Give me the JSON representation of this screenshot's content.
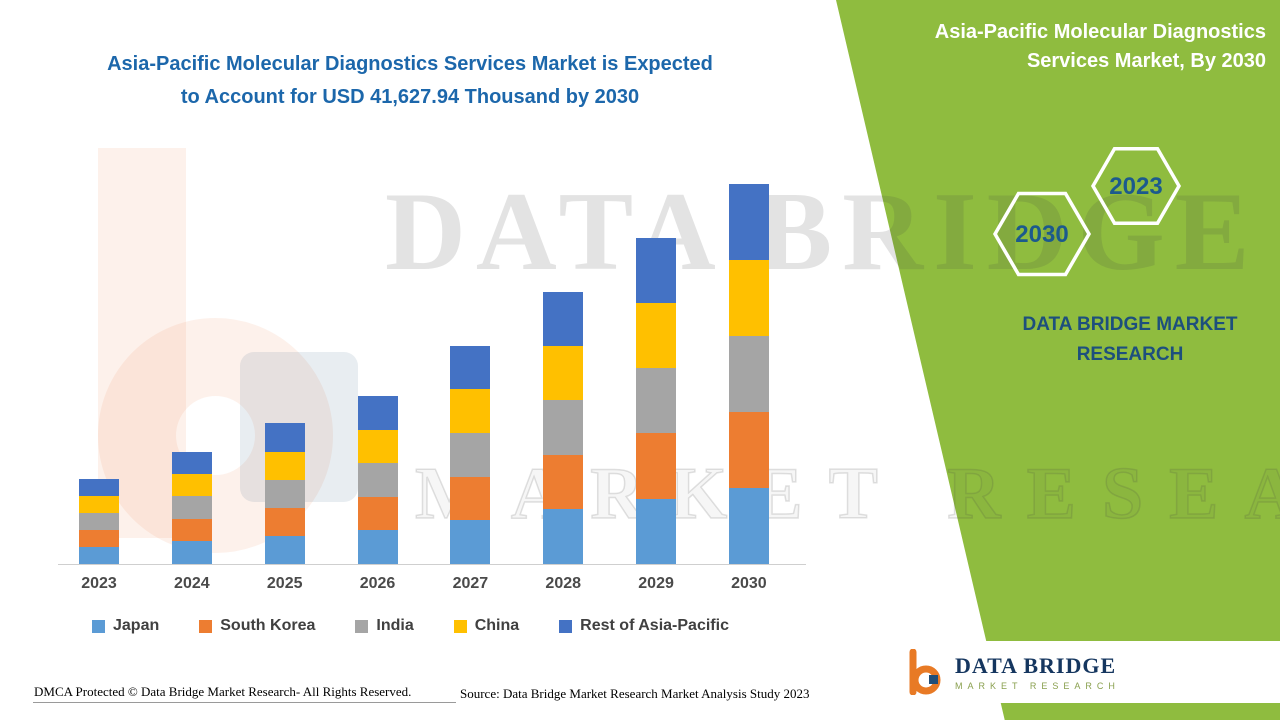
{
  "header": {
    "left_title_line1": "Asia-Pacific Molecular Diagnostics Services Market is Expected",
    "left_title_line2": "to Account for USD 41,627.94 Thousand by 2030",
    "right_title_line1": "Asia-Pacific Molecular Diagnostics",
    "right_title_line2": "Services Market, By 2030"
  },
  "badges": {
    "hex_left": "2030",
    "hex_right": "2023"
  },
  "branding": {
    "name_line1": "DATA BRIDGE MARKET",
    "name_line2": "RESEARCH",
    "logo_title": "DATA BRIDGE",
    "logo_subtitle": "MARKET RESEARCH"
  },
  "watermark": {
    "line1": "DATA BRIDGE",
    "line2": "MARKET RESEARCH"
  },
  "footer": {
    "dmca": "DMCA Protected © Data Bridge Market Research- All Rights Reserved.",
    "source": "Source: Data Bridge Market Research Market Analysis Study 2023"
  },
  "colors": {
    "green_panel": "#8fbc3f",
    "title_blue": "#1c67ab",
    "brand_navy": "#1d4f7d",
    "hex_number_blue": "#1c5a8d",
    "logo_orange": "#e87a25",
    "japan": "#5B9BD5",
    "south_korea": "#ED7D31",
    "india": "#A5A5A5",
    "china": "#FFC000",
    "rest_of_asia_pacific": "#4472C4"
  },
  "chart_data": {
    "type": "bar",
    "stacked": true,
    "title": "Asia-Pacific Molecular Diagnostics Services Market is Expected to Account for USD 41,627.94 Thousand by 2030",
    "unit": "USD Thousand",
    "labeled_value": {
      "year": "2030",
      "total": 41627.94,
      "label": "USD 41,627.94 Thousand"
    },
    "categories": [
      "2023",
      "2024",
      "2025",
      "2026",
      "2027",
      "2028",
      "2029",
      "2030"
    ],
    "series": [
      {
        "name": "Japan",
        "color": "#5B9BD5",
        "values": [
          1900,
          2500,
          3100,
          3700,
          4800,
          6000,
          7150,
          8330
        ]
      },
      {
        "name": "South Korea",
        "color": "#ED7D31",
        "values": [
          1880,
          2470,
          3090,
          3680,
          4790,
          5970,
          7150,
          8330
        ]
      },
      {
        "name": "India",
        "color": "#A5A5A5",
        "values": [
          1850,
          2440,
          3070,
          3660,
          4780,
          5960,
          7140,
          8320
        ]
      },
      {
        "name": "China",
        "color": "#FFC000",
        "values": [
          1860,
          2440,
          3070,
          3660,
          4790,
          5960,
          7150,
          8320
        ]
      },
      {
        "name": "Rest of Asia-Pacific",
        "color": "#4472C4",
        "values": [
          1810,
          2390,
          3080,
          3660,
          4780,
          5950,
          7150,
          8327.94
        ]
      }
    ],
    "totals_estimated": [
      9300,
      12240,
      15410,
      18360,
      23940,
      29840,
      35740,
      41627.94
    ],
    "ylim": [
      0,
      42000
    ],
    "grid": false,
    "y_axis_visible": false,
    "legend_position": "bottom"
  }
}
